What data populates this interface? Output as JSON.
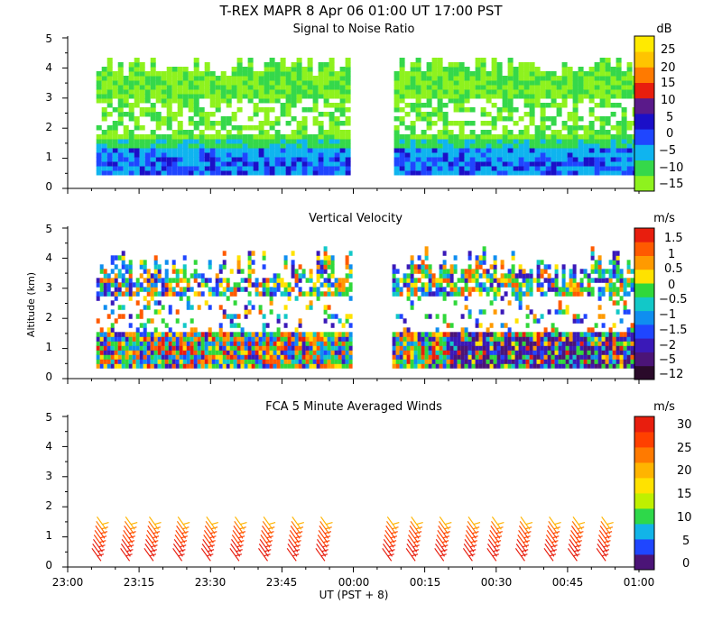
{
  "header": {
    "title": "T-REX   MAPR   8 Apr 06   01:00 UT   17:00   PST"
  },
  "x_axis": {
    "label": "UT  (PST + 8)",
    "ticks": [
      "23:00",
      "23:15",
      "23:30",
      "23:45",
      "00:00",
      "00:15",
      "00:30",
      "00:45",
      "01:00"
    ]
  },
  "y_axis": {
    "label": "Altitude (km)",
    "ticks": [
      "0",
      "1",
      "2",
      "3",
      "4",
      "5"
    ]
  },
  "panels": [
    {
      "title": "Signal to Noise Ratio",
      "unit": "dB",
      "colorbar_labels": [
        "25",
        "20",
        "15",
        "10",
        "5",
        "0",
        "−5",
        "−10",
        "−15"
      ]
    },
    {
      "title": "Vertical Velocity",
      "unit": "m/s",
      "colorbar_labels": [
        "1.5",
        "1",
        "0.5",
        "0",
        "−0.5",
        "−1",
        "−1.5",
        "−2",
        "−5",
        "−12"
      ]
    },
    {
      "title": "FCA 5 Minute Averaged Winds",
      "unit": "m/s",
      "colorbar_labels": [
        "30",
        "25",
        "20",
        "15",
        "10",
        "5",
        "0"
      ]
    }
  ],
  "chart_data": [
    {
      "type": "heatmap",
      "title": "Signal to Noise Ratio",
      "ylabel": "",
      "unit": "dB",
      "xlim": [
        "23:00",
        "01:00"
      ],
      "ylim": [
        0,
        5
      ],
      "data_gap": [
        "00:00",
        "00:08"
      ],
      "colorbar": {
        "levels": [
          -15,
          -10,
          -5,
          0,
          5,
          10,
          15,
          20,
          25
        ],
        "colors": [
          "#8ef21e",
          "#35d84a",
          "#0fb4ef",
          "#1f46ff",
          "#1b0fc8",
          "#5a1a8a",
          "#e81e0e",
          "#ff7a00",
          "#ffc400",
          "#ffea00"
        ]
      },
      "profile": [
        {
          "alt_range": [
            0.4,
            1.3
          ],
          "typical_db": "-5 to 5"
        },
        {
          "alt_range": [
            1.3,
            1.6
          ],
          "typical_db": "-10"
        },
        {
          "alt_range": [
            1.6,
            4.2
          ],
          "typical_db": "-15 to -10"
        }
      ]
    },
    {
      "type": "heatmap",
      "title": "Vertical Velocity",
      "ylabel": "Altitude (km)",
      "unit": "m/s",
      "xlim": [
        "23:00",
        "01:00"
      ],
      "ylim": [
        0,
        5
      ],
      "data_gap": [
        "00:00",
        "00:08"
      ],
      "colorbar": {
        "levels": [
          -12,
          -5,
          -2,
          -1.5,
          -1,
          -0.5,
          0,
          0.5,
          1,
          1.5
        ],
        "colors": [
          "#2a0a2a",
          "#4b1477",
          "#3a19b8",
          "#1f46ff",
          "#0f8ef0",
          "#12c8c8",
          "#30d83a",
          "#ffe200",
          "#ff9a00",
          "#ff5a00",
          "#e81e0e"
        ]
      }
    },
    {
      "type": "scatter",
      "title": "FCA 5 Minute Averaged Winds",
      "ylabel": "",
      "unit": "m/s",
      "xlim": [
        "23:00",
        "01:00"
      ],
      "ylim": [
        0,
        5
      ],
      "note": "wind barbs",
      "barb_times": [
        "23:07",
        "23:13",
        "23:18",
        "23:24",
        "23:30",
        "23:36",
        "23:42",
        "23:48",
        "23:54",
        "00:08",
        "00:13",
        "00:19",
        "00:25",
        "00:30",
        "00:36",
        "00:42",
        "00:47",
        "00:53"
      ],
      "barb_heights_km": [
        0.2,
        0.35,
        0.5,
        0.65,
        0.8,
        0.95,
        1.1,
        1.25
      ],
      "colorbar": {
        "levels": [
          0,
          5,
          10,
          15,
          20,
          25,
          30
        ],
        "colors": [
          "#4b1477",
          "#1f46ff",
          "#12b4e8",
          "#2ed84a",
          "#bff000",
          "#ffe200",
          "#ffb400",
          "#ff7a00",
          "#ff4000",
          "#e81e0e"
        ]
      }
    }
  ]
}
